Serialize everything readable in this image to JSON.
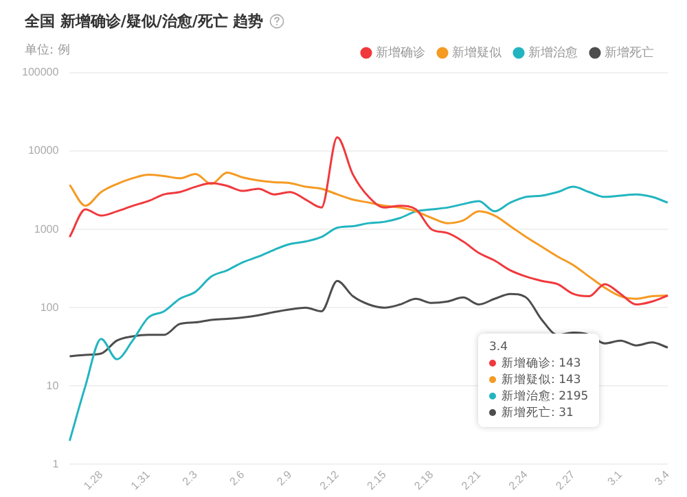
{
  "chart_data": {
    "type": "line",
    "title": "全国 新增确诊/疑似/治愈/死亡 趋势",
    "subtitle": "单位: 例",
    "categories": [
      null,
      null,
      "1.28",
      null,
      null,
      "1.31",
      null,
      null,
      "2.3",
      null,
      null,
      "2.6",
      null,
      null,
      "2.9",
      null,
      null,
      "2.12",
      null,
      null,
      "2.15",
      null,
      null,
      "2.18",
      null,
      null,
      "2.21",
      null,
      null,
      "2.24",
      null,
      null,
      "2.27",
      null,
      null,
      "3.1",
      null,
      null,
      "3.4"
    ],
    "series": [
      {
        "name": "新增确诊",
        "color": "#f0393c",
        "values": [
          800,
          1800,
          1500,
          1700,
          2000,
          2300,
          2800,
          3000,
          3500,
          3900,
          3600,
          3100,
          3300,
          2800,
          3000,
          2400,
          1900,
          15000,
          5000,
          2600,
          1900,
          2000,
          1800,
          1000,
          900,
          700,
          500,
          400,
          300,
          250,
          220,
          200,
          150,
          140,
          200,
          150,
          110,
          120,
          143
        ]
      },
      {
        "name": "新增疑似",
        "color": "#f59a23",
        "values": [
          3700,
          2000,
          3000,
          3800,
          4500,
          5000,
          4800,
          4500,
          5100,
          3800,
          5300,
          4600,
          4200,
          4000,
          3900,
          3500,
          3300,
          2800,
          2400,
          2200,
          2000,
          1900,
          1700,
          1400,
          1200,
          1300,
          1700,
          1500,
          1100,
          800,
          600,
          450,
          350,
          250,
          180,
          140,
          130,
          140,
          143
        ]
      },
      {
        "name": "新增治愈",
        "color": "#22b5c0",
        "values": [
          2,
          10,
          40,
          22,
          38,
          75,
          90,
          130,
          160,
          250,
          300,
          380,
          450,
          550,
          650,
          700,
          800,
          1050,
          1100,
          1200,
          1250,
          1400,
          1700,
          1800,
          1900,
          2100,
          2300,
          1700,
          2200,
          2600,
          2700,
          3000,
          3500,
          3000,
          2600,
          2700,
          2800,
          2600,
          2195
        ]
      },
      {
        "name": "新增死亡",
        "color": "#4d4d4d",
        "values": [
          24,
          25,
          26,
          38,
          43,
          45,
          45,
          62,
          65,
          70,
          72,
          75,
          80,
          88,
          95,
          100,
          90,
          220,
          140,
          110,
          100,
          110,
          130,
          115,
          120,
          135,
          110,
          130,
          150,
          135,
          70,
          45,
          48,
          45,
          35,
          38,
          33,
          36,
          31
        ]
      }
    ],
    "log": "y",
    "ylim": [
      1,
      100000
    ],
    "yticks": [
      1,
      10,
      100,
      1000,
      10000,
      100000
    ],
    "grid": "y",
    "legend": "top right",
    "marker": "none",
    "line_style": "solid",
    "annotations": [
      "3.4",
      "新增确诊: 143",
      "新增疑似: 143",
      "新增治愈: 2195",
      "新增死亡: 31"
    ]
  }
}
